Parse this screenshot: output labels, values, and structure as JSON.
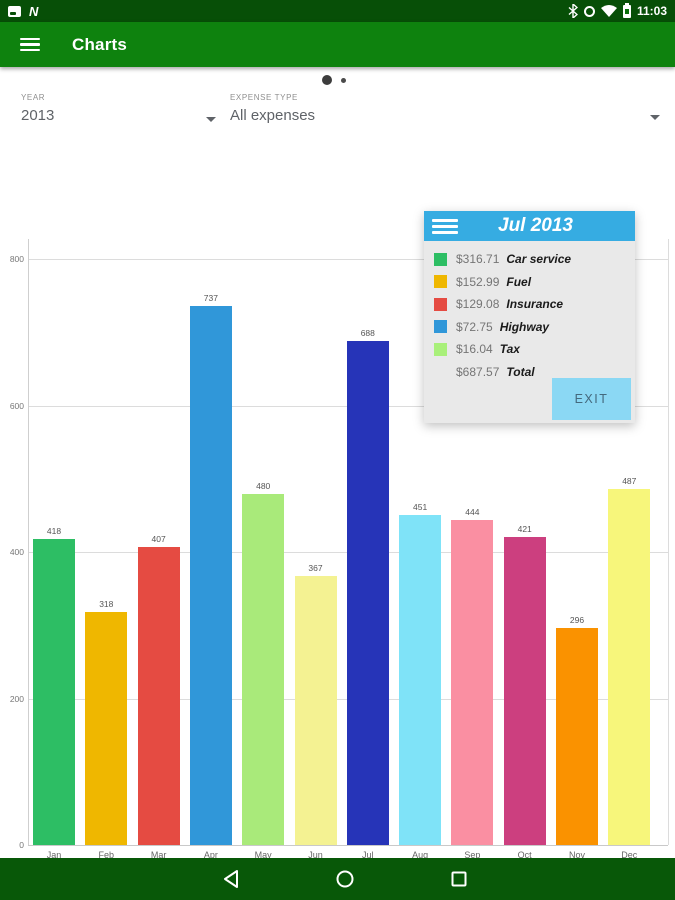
{
  "status_bar": {
    "time": "11:03",
    "left_icons": [
      "screenshot-icon",
      "nfc-icon"
    ],
    "right_icons": [
      "bluetooth-icon",
      "clock-icon",
      "wifi-icon",
      "battery-icon"
    ]
  },
  "app_bar": {
    "title": "Charts"
  },
  "filters": {
    "year": {
      "label": "YEAR",
      "value": "2013"
    },
    "expense_type": {
      "label": "EXPENSE TYPE",
      "value": "All expenses"
    }
  },
  "chart_data": {
    "type": "bar",
    "title": "",
    "xlabel": "",
    "ylabel": "",
    "categories": [
      "Jan",
      "Feb",
      "Mar",
      "Apr",
      "May",
      "Jun",
      "Jul",
      "Aug",
      "Sep",
      "Oct",
      "Nov",
      "Dec"
    ],
    "values": [
      418,
      318,
      407,
      737,
      480,
      367,
      688,
      451,
      444,
      421,
      296,
      487
    ],
    "bar_colors": [
      "#2dbe64",
      "#efb700",
      "#e54b42",
      "#3097d9",
      "#a9ea7a",
      "#f4f292",
      "#2634b8",
      "#7fe3f8",
      "#fa8fa2",
      "#cc3f7f",
      "#fa9200",
      "#f7f67b"
    ],
    "ylim": [
      0,
      800
    ],
    "yticks": [
      0,
      200,
      400,
      600,
      800
    ],
    "grid": true,
    "legend_position": "none"
  },
  "popup": {
    "title": "Jul 2013",
    "rows": [
      {
        "amount": "$316.71",
        "name": "Car service",
        "color": "#2dbe64"
      },
      {
        "amount": "$152.99",
        "name": "Fuel",
        "color": "#efb700"
      },
      {
        "amount": "$129.08",
        "name": "Insurance",
        "color": "#e54b42"
      },
      {
        "amount": "$72.75",
        "name": "Highway",
        "color": "#3097d9"
      },
      {
        "amount": "$16.04",
        "name": "Tax",
        "color": "#a9f07a"
      }
    ],
    "total": {
      "amount": "$687.57",
      "name": "Total"
    },
    "exit_label": "EXIT"
  },
  "colors": {
    "app_bar": "#0e820e",
    "status_bar": "#074f07",
    "nav_bar": "#085808",
    "popup_header": "#36ace2",
    "exit_button": "#8bd8f4"
  }
}
